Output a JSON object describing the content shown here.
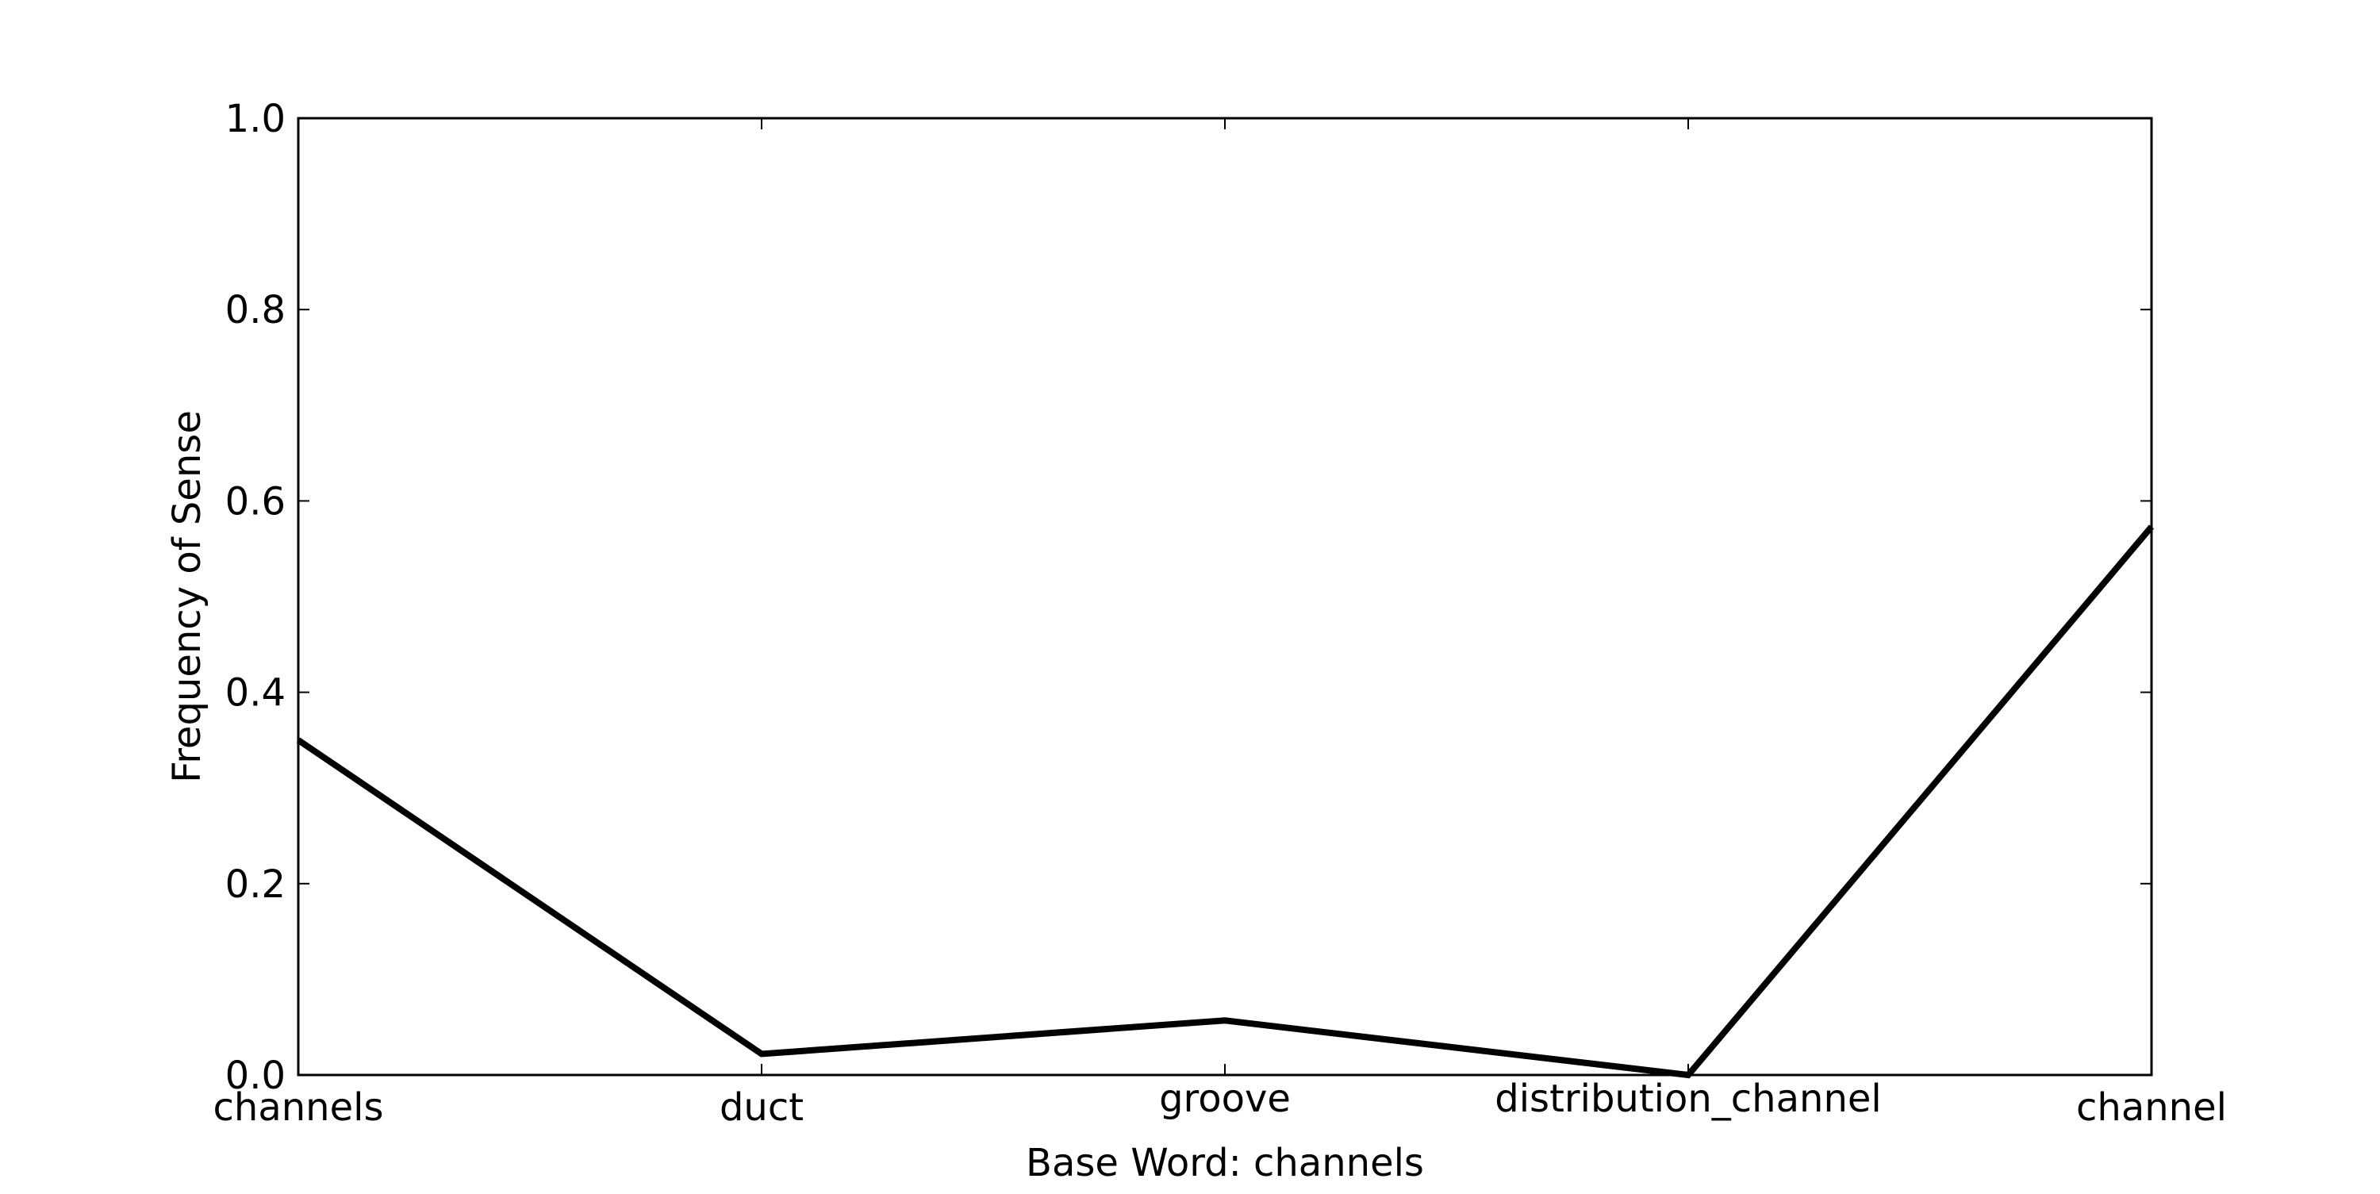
{
  "chart_data": {
    "type": "line",
    "categories": [
      "channels",
      "duct",
      "groove",
      "distribution_channel",
      "channel"
    ],
    "series": [
      {
        "values": [
          0.35,
          0.022,
          0.057,
          0.0,
          0.573
        ],
        "color": "#000000"
      }
    ],
    "title": "",
    "xlabel": "Base Word: channels",
    "ylabel": "Frequency of Sense",
    "ylim": [
      0.0,
      1.0
    ],
    "yticks": [
      "0.0",
      "0.2",
      "0.4",
      "0.6",
      "0.8",
      "1.0"
    ],
    "grid": false,
    "legend": "none"
  }
}
